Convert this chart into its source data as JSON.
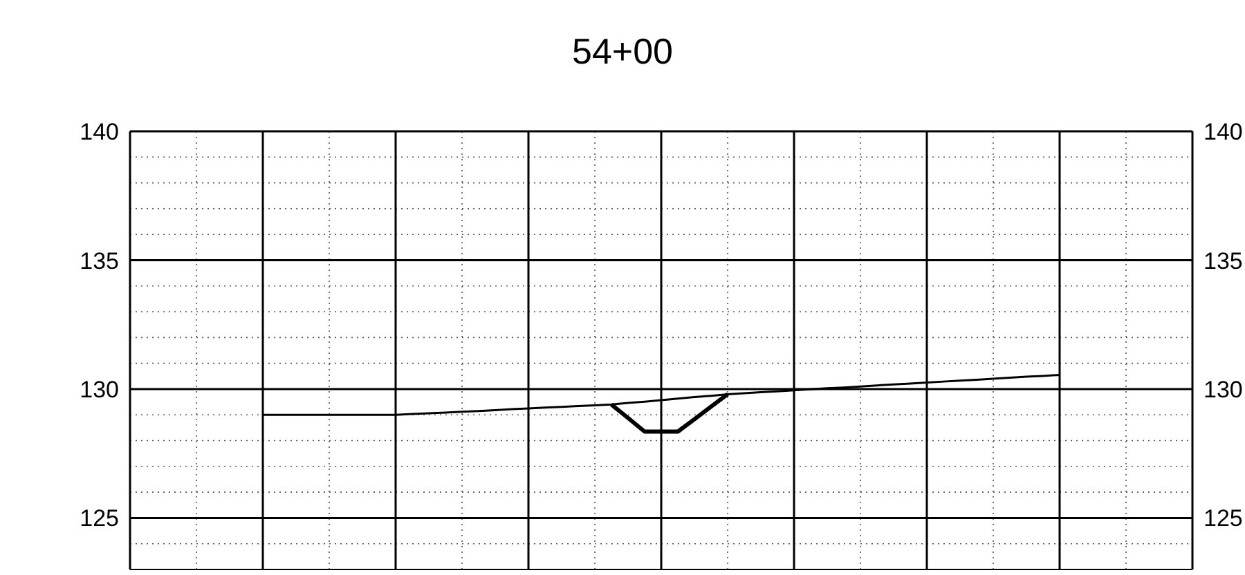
{
  "chart_data": {
    "type": "line",
    "title": "54+00",
    "categories": [
      null,
      null,
      null,
      null,
      null,
      null,
      null,
      null,
      null,
      null,
      null,
      null,
      null,
      null,
      null,
      null,
      null,
      null,
      null,
      null,
      null,
      null,
      null,
      null,
      null,
      null,
      null,
      null,
      null,
      null,
      null,
      null,
      null,
      null,
      null,
      null,
      null,
      null,
      null,
      null,
      null,
      null,
      null,
      null,
      null,
      null,
      null,
      null,
      null,
      null,
      null,
      null,
      null,
      null,
      null,
      null,
      null,
      null,
      null,
      null,
      null,
      null,
      null,
      null,
      null
    ],
    "ylim": [
      123,
      140
    ],
    "yticks": [
      {
        "value": 123,
        "label": null
      },
      {
        "value": 124,
        "label": null
      },
      125,
      {
        "value": 126,
        "label": null
      },
      {
        "value": 127,
        "label": null
      },
      {
        "value": 128,
        "label": null
      },
      {
        "value": 129,
        "label": null
      },
      130,
      {
        "value": 131,
        "label": null
      },
      {
        "value": 132,
        "label": null
      },
      {
        "value": 133,
        "label": null
      },
      {
        "value": 134,
        "label": null
      },
      135,
      {
        "value": 136,
        "label": null
      },
      {
        "value": 137,
        "label": null
      },
      {
        "value": 138,
        "label": null
      },
      {
        "value": 139,
        "label": null
      },
      140
    ],
    "y2lim": [
      123,
      140
    ],
    "y2ticks": [
      125,
      130,
      135,
      140
    ],
    "grid": true,
    "marker": "none",
    "line_style": "solid",
    "series": [
      {
        "color": "#000000",
        "values": [
          null,
          null,
          null,
          null,
          null,
          null,
          null,
          null,
          129.0,
          129.0,
          129.0,
          129.0,
          129.0,
          129.0,
          129.0,
          129.0,
          129.0,
          129.03,
          129.06,
          129.09,
          129.12,
          129.15,
          129.18,
          129.22,
          129.25,
          129.28,
          129.31,
          129.34,
          129.37,
          129.4,
          129.46,
          129.51,
          129.57,
          129.63,
          129.69,
          129.74,
          129.8,
          129.84,
          129.88,
          129.91,
          129.95,
          129.99,
          130.03,
          130.06,
          130.1,
          130.14,
          130.18,
          130.21,
          130.25,
          130.29,
          130.33,
          130.36,
          130.4,
          130.44,
          130.48,
          130.51,
          130.55,
          null,
          null,
          null,
          null,
          null,
          null,
          null,
          null
        ]
      },
      {
        "color": "#000000",
        "values": [
          null,
          null,
          null,
          null,
          null,
          null,
          null,
          null,
          null,
          null,
          null,
          null,
          null,
          null,
          null,
          null,
          null,
          null,
          null,
          null,
          null,
          null,
          null,
          null,
          null,
          null,
          null,
          null,
          null,
          129.4,
          128.88,
          128.35,
          128.35,
          128.35,
          128.83,
          129.32,
          129.8,
          null,
          null,
          null,
          null,
          null,
          null,
          null,
          null,
          null,
          null,
          null,
          null,
          null,
          null,
          null,
          null,
          null,
          null,
          null,
          null,
          null,
          null,
          null,
          null,
          null,
          null,
          null,
          null
        ]
      }
    ]
  }
}
